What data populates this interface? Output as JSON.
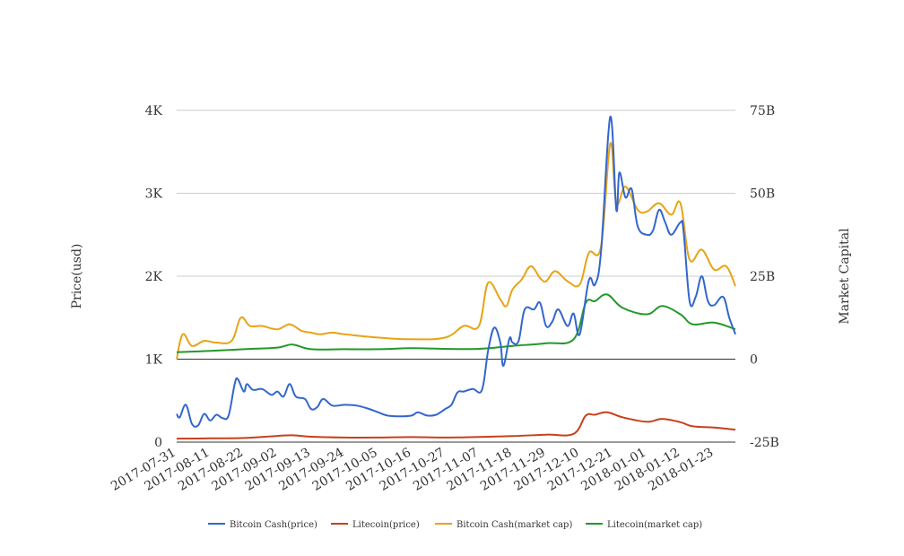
{
  "chart_data": {
    "type": "line",
    "title": "",
    "xlabel": "",
    "ylabel": "Price(usd)",
    "y2label": "Market Capital",
    "ylim": [
      0,
      4000
    ],
    "y2lim": [
      -25000000000,
      75000000000
    ],
    "yticks": [
      {
        "value": 0,
        "label": "0"
      },
      {
        "value": 1000,
        "label": "1K"
      },
      {
        "value": 2000,
        "label": "2K"
      },
      {
        "value": 3000,
        "label": "3K"
      },
      {
        "value": 4000,
        "label": "4K"
      }
    ],
    "y2ticks": [
      {
        "value": -25000000000,
        "label": "-25B"
      },
      {
        "value": 0,
        "label": "0"
      },
      {
        "value": 25000000000,
        "label": "25B"
      },
      {
        "value": 50000000000,
        "label": "50B"
      },
      {
        "value": 75000000000,
        "label": "75B"
      }
    ],
    "xlim": [
      "2017-07-31",
      "2018-01-30"
    ],
    "xticks": [
      "2017-07-31",
      "2017-08-11",
      "2017-08-22",
      "2017-09-02",
      "2017-09-13",
      "2017-09-24",
      "2017-10-05",
      "2017-10-16",
      "2017-10-27",
      "2017-11-07",
      "2017-11-18",
      "2017-11-29",
      "2017-12-10",
      "2017-12-21",
      "2018-01-01",
      "2018-01-12",
      "2018-01-23"
    ],
    "legend_position": "bottom",
    "grid": true,
    "series": [
      {
        "name": "Bitcoin Cash(price)",
        "axis": "left",
        "color": "#3366cc",
        "points": [
          [
            "2017-07-31",
            340
          ],
          [
            "2017-08-01",
            300
          ],
          [
            "2017-08-03",
            450
          ],
          [
            "2017-08-05",
            220
          ],
          [
            "2017-08-07",
            200
          ],
          [
            "2017-08-09",
            340
          ],
          [
            "2017-08-11",
            260
          ],
          [
            "2017-08-13",
            330
          ],
          [
            "2017-08-15",
            290
          ],
          [
            "2017-08-17",
            320
          ],
          [
            "2017-08-19",
            700
          ],
          [
            "2017-08-20",
            760
          ],
          [
            "2017-08-22",
            610
          ],
          [
            "2017-08-23",
            700
          ],
          [
            "2017-08-25",
            630
          ],
          [
            "2017-08-28",
            640
          ],
          [
            "2017-08-31",
            570
          ],
          [
            "2017-09-02",
            610
          ],
          [
            "2017-09-04",
            550
          ],
          [
            "2017-09-06",
            700
          ],
          [
            "2017-09-08",
            550
          ],
          [
            "2017-09-11",
            520
          ],
          [
            "2017-09-13",
            400
          ],
          [
            "2017-09-15",
            420
          ],
          [
            "2017-09-17",
            520
          ],
          [
            "2017-09-20",
            440
          ],
          [
            "2017-09-24",
            450
          ],
          [
            "2017-09-28",
            440
          ],
          [
            "2017-10-02",
            400
          ],
          [
            "2017-10-05",
            360
          ],
          [
            "2017-10-08",
            320
          ],
          [
            "2017-10-12",
            310
          ],
          [
            "2017-10-16",
            320
          ],
          [
            "2017-10-18",
            360
          ],
          [
            "2017-10-21",
            320
          ],
          [
            "2017-10-24",
            330
          ],
          [
            "2017-10-27",
            400
          ],
          [
            "2017-10-29",
            450
          ],
          [
            "2017-10-31",
            600
          ],
          [
            "2017-11-02",
            610
          ],
          [
            "2017-11-05",
            640
          ],
          [
            "2017-11-08",
            630
          ],
          [
            "2017-11-10",
            1100
          ],
          [
            "2017-11-12",
            1380
          ],
          [
            "2017-11-14",
            1200
          ],
          [
            "2017-11-15",
            920
          ],
          [
            "2017-11-17",
            1250
          ],
          [
            "2017-11-18",
            1200
          ],
          [
            "2017-11-20",
            1220
          ],
          [
            "2017-11-22",
            1600
          ],
          [
            "2017-11-25",
            1600
          ],
          [
            "2017-11-27",
            1680
          ],
          [
            "2017-11-29",
            1400
          ],
          [
            "2017-12-01",
            1450
          ],
          [
            "2017-12-03",
            1600
          ],
          [
            "2017-12-06",
            1400
          ],
          [
            "2017-12-08",
            1550
          ],
          [
            "2017-12-10",
            1300
          ],
          [
            "2017-12-13",
            1950
          ],
          [
            "2017-12-15",
            1900
          ],
          [
            "2017-12-17",
            2300
          ],
          [
            "2017-12-20",
            3920
          ],
          [
            "2017-12-22",
            2800
          ],
          [
            "2017-12-23",
            3250
          ],
          [
            "2017-12-25",
            2950
          ],
          [
            "2017-12-27",
            3050
          ],
          [
            "2017-12-29",
            2600
          ],
          [
            "2018-01-01",
            2500
          ],
          [
            "2018-01-03",
            2550
          ],
          [
            "2018-01-05",
            2800
          ],
          [
            "2018-01-07",
            2650
          ],
          [
            "2018-01-09",
            2500
          ],
          [
            "2018-01-12",
            2650
          ],
          [
            "2018-01-13",
            2550
          ],
          [
            "2018-01-15",
            1700
          ],
          [
            "2018-01-17",
            1750
          ],
          [
            "2018-01-19",
            2000
          ],
          [
            "2018-01-21",
            1700
          ],
          [
            "2018-01-23",
            1650
          ],
          [
            "2018-01-26",
            1750
          ],
          [
            "2018-01-28",
            1500
          ],
          [
            "2018-01-30",
            1300
          ]
        ]
      },
      {
        "name": "Litecoin(price)",
        "axis": "left",
        "color": "#c8401d",
        "points": [
          [
            "2017-07-31",
            42
          ],
          [
            "2017-08-11",
            45
          ],
          [
            "2017-08-22",
            50
          ],
          [
            "2017-09-02",
            75
          ],
          [
            "2017-09-07",
            82
          ],
          [
            "2017-09-13",
            65
          ],
          [
            "2017-09-24",
            55
          ],
          [
            "2017-10-05",
            55
          ],
          [
            "2017-10-16",
            60
          ],
          [
            "2017-10-27",
            55
          ],
          [
            "2017-11-07",
            63
          ],
          [
            "2017-11-18",
            72
          ],
          [
            "2017-11-29",
            90
          ],
          [
            "2017-12-08",
            100
          ],
          [
            "2017-12-12",
            320
          ],
          [
            "2017-12-15",
            330
          ],
          [
            "2017-12-19",
            360
          ],
          [
            "2017-12-24",
            300
          ],
          [
            "2018-01-01",
            245
          ],
          [
            "2018-01-06",
            280
          ],
          [
            "2018-01-12",
            240
          ],
          [
            "2018-01-16",
            190
          ],
          [
            "2018-01-23",
            175
          ],
          [
            "2018-01-30",
            150
          ]
        ]
      },
      {
        "name": "Bitcoin Cash(market cap)",
        "axis": "right",
        "color": "#e8a317",
        "points": [
          [
            "2017-07-31",
            0
          ],
          [
            "2017-08-02",
            7500000000
          ],
          [
            "2017-08-05",
            4000000000
          ],
          [
            "2017-08-09",
            5500000000
          ],
          [
            "2017-08-13",
            5000000000
          ],
          [
            "2017-08-18",
            5500000000
          ],
          [
            "2017-08-21",
            12500000000
          ],
          [
            "2017-08-24",
            10000000000
          ],
          [
            "2017-08-28",
            10000000000
          ],
          [
            "2017-09-02",
            9000000000
          ],
          [
            "2017-09-06",
            10500000000
          ],
          [
            "2017-09-10",
            8500000000
          ],
          [
            "2017-09-13",
            8000000000
          ],
          [
            "2017-09-16",
            7500000000
          ],
          [
            "2017-09-20",
            8000000000
          ],
          [
            "2017-09-24",
            7500000000
          ],
          [
            "2017-10-05",
            6500000000
          ],
          [
            "2017-10-16",
            6000000000
          ],
          [
            "2017-10-27",
            6500000000
          ],
          [
            "2017-11-02",
            10000000000
          ],
          [
            "2017-11-07",
            10000000000
          ],
          [
            "2017-11-10",
            23000000000
          ],
          [
            "2017-11-14",
            18000000000
          ],
          [
            "2017-11-16",
            16000000000
          ],
          [
            "2017-11-18",
            21000000000
          ],
          [
            "2017-11-21",
            24000000000
          ],
          [
            "2017-11-24",
            28000000000
          ],
          [
            "2017-11-27",
            24500000000
          ],
          [
            "2017-11-29",
            23500000000
          ],
          [
            "2017-12-02",
            26500000000
          ],
          [
            "2017-12-06",
            23500000000
          ],
          [
            "2017-12-10",
            22500000000
          ],
          [
            "2017-12-13",
            32000000000
          ],
          [
            "2017-12-17",
            34000000000
          ],
          [
            "2017-12-20",
            65000000000
          ],
          [
            "2017-12-22",
            47000000000
          ],
          [
            "2017-12-25",
            52000000000
          ],
          [
            "2017-12-29",
            45000000000
          ],
          [
            "2018-01-01",
            44500000000
          ],
          [
            "2018-01-05",
            47000000000
          ],
          [
            "2018-01-09",
            43500000000
          ],
          [
            "2018-01-12",
            47000000000
          ],
          [
            "2018-01-15",
            30000000000
          ],
          [
            "2018-01-19",
            33000000000
          ],
          [
            "2018-01-23",
            27000000000
          ],
          [
            "2018-01-27",
            28000000000
          ],
          [
            "2018-01-30",
            22000000000
          ]
        ]
      },
      {
        "name": "Litecoin(market cap)",
        "axis": "right",
        "color": "#22992b",
        "points": [
          [
            "2017-07-31",
            2100000000
          ],
          [
            "2017-08-11",
            2500000000
          ],
          [
            "2017-08-22",
            3000000000
          ],
          [
            "2017-09-02",
            3500000000
          ],
          [
            "2017-09-07",
            4400000000
          ],
          [
            "2017-09-13",
            3000000000
          ],
          [
            "2017-09-24",
            3000000000
          ],
          [
            "2017-10-05",
            3000000000
          ],
          [
            "2017-10-16",
            3300000000
          ],
          [
            "2017-10-27",
            3100000000
          ],
          [
            "2017-11-07",
            3100000000
          ],
          [
            "2017-11-18",
            4000000000
          ],
          [
            "2017-11-29",
            4800000000
          ],
          [
            "2017-12-08",
            6000000000
          ],
          [
            "2017-12-12",
            17000000000
          ],
          [
            "2017-12-15",
            17500000000
          ],
          [
            "2017-12-19",
            19500000000
          ],
          [
            "2017-12-24",
            15500000000
          ],
          [
            "2018-01-01",
            13500000000
          ],
          [
            "2018-01-06",
            16000000000
          ],
          [
            "2018-01-12",
            13500000000
          ],
          [
            "2018-01-16",
            10500000000
          ],
          [
            "2018-01-23",
            11000000000
          ],
          [
            "2018-01-30",
            9000000000
          ]
        ]
      }
    ]
  }
}
